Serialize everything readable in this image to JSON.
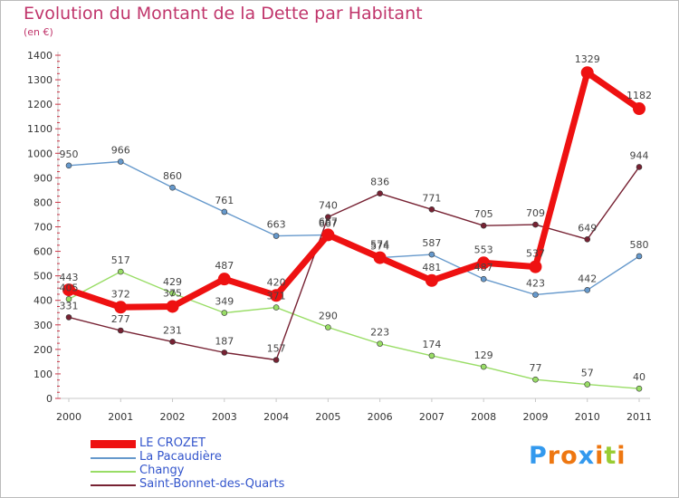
{
  "page": {
    "title": "Evolution du Montant de la Dette par Habitant",
    "subtitle": "(en €)"
  },
  "chart_data": {
    "type": "line",
    "x": [
      "2000",
      "2001",
      "2002",
      "2003",
      "2004",
      "2005",
      "2006",
      "2007",
      "2008",
      "2009",
      "2010",
      "2011"
    ],
    "ylim": [
      0,
      1400
    ],
    "yticks": [
      0,
      100,
      200,
      300,
      400,
      500,
      600,
      700,
      800,
      900,
      1000,
      1100,
      1200,
      1300,
      1400
    ],
    "grid": false,
    "legend_position": "bottom-left",
    "series": [
      {
        "name": "LE CROZET",
        "color": "#ee1111",
        "values": [
          443,
          372,
          375,
          487,
          420,
          667,
          574,
          481,
          553,
          537,
          1329,
          1182
        ]
      },
      {
        "name": "La Pacaudière",
        "color": "#6699cc",
        "values": [
          950,
          966,
          860,
          761,
          663,
          667,
          574,
          587,
          487,
          423,
          442,
          580
        ]
      },
      {
        "name": "Changy",
        "color": "#99dd66",
        "values": [
          405,
          517,
          429,
          349,
          371,
          290,
          223,
          174,
          129,
          77,
          57,
          40
        ]
      },
      {
        "name": "Saint-Bonnet-des-Quarts",
        "color": "#772233",
        "values": [
          331,
          277,
          231,
          187,
          157,
          740,
          836,
          771,
          705,
          709,
          649,
          944
        ]
      }
    ]
  },
  "logo": {
    "letters": [
      "P",
      "r",
      "o",
      "x",
      "i",
      "t",
      "i"
    ],
    "colors": [
      "#3399ee",
      "#ee7711",
      "#ee7711",
      "#3399ee",
      "#ee7711",
      "#99cc33",
      "#ee7711"
    ]
  }
}
